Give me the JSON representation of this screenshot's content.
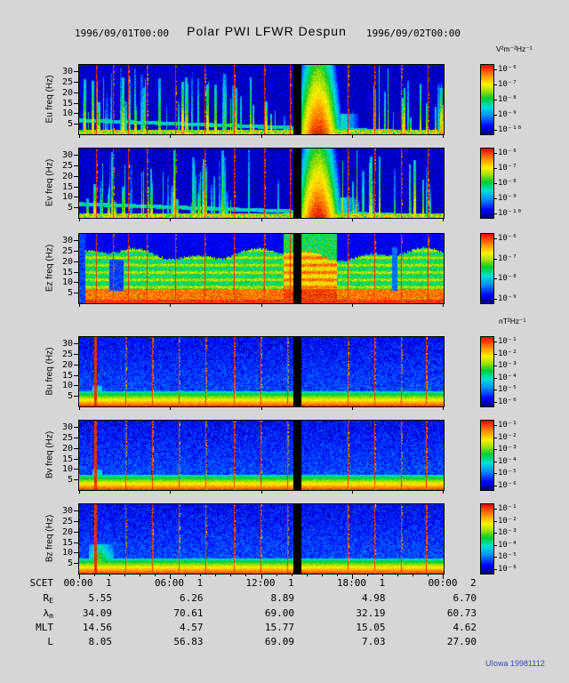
{
  "header": {
    "start_time": "1996/09/01T00:00",
    "title": "Polar PWI LFWR Despun",
    "end_time": "1996/09/02T00:00"
  },
  "credit": "UIowa 19981112",
  "colors": {
    "background": "#d6d6d6",
    "credit_text": "#4444bb"
  },
  "freq_ticks": [
    30,
    25,
    20,
    15,
    10,
    5
  ],
  "panels": [
    {
      "id": "Eu",
      "label": "Eu freq (Hz)",
      "type": "E",
      "colorbar": {
        "unit": "V²m⁻²Hz⁻¹",
        "ticks": [
          "10⁻⁶",
          "10⁻⁷",
          "10⁻⁸",
          "10⁻⁹",
          "10⁻¹⁰"
        ]
      }
    },
    {
      "id": "Ev",
      "label": "Ev freq (Hz)",
      "type": "E",
      "colorbar": {
        "ticks": [
          "10⁻⁶",
          "10⁻⁷",
          "10⁻⁸",
          "10⁻⁹",
          "10⁻¹⁰"
        ]
      }
    },
    {
      "id": "Ez",
      "label": "Ez freq (Hz)",
      "type": "Ez",
      "colorbar": {
        "ticks": [
          "10⁻⁶",
          "10⁻⁷",
          "10⁻⁸",
          "10⁻⁹"
        ]
      }
    },
    {
      "id": "Bu",
      "label": "Bu freq (Hz)",
      "type": "B",
      "colorbar": {
        "unit": "nT²Hz⁻¹",
        "ticks": [
          "10⁻¹",
          "10⁻²",
          "10⁻³",
          "10⁻⁴",
          "10⁻⁵",
          "10⁻⁶"
        ]
      }
    },
    {
      "id": "Bv",
      "label": "Bv freq (Hz)",
      "type": "B",
      "colorbar": {
        "ticks": [
          "10⁻¹",
          "10⁻²",
          "10⁻³",
          "10⁻⁴",
          "10⁻⁵",
          "10⁻⁶"
        ]
      }
    },
    {
      "id": "Bz",
      "label": "Bz freq (Hz)",
      "type": "Bz",
      "colorbar": {
        "ticks": [
          "10⁻¹",
          "10⁻²",
          "10⁻³",
          "10⁻⁴",
          "10⁻⁵",
          "10⁻⁶"
        ]
      }
    }
  ],
  "xaxis": {
    "rows": [
      {
        "label": "SCET",
        "sub": "",
        "values": [
          "00:00",
          "06:00",
          "12:00",
          "18:00",
          "00:00"
        ],
        "days": [
          "1",
          "1",
          "1",
          "1",
          "2"
        ]
      },
      {
        "label": "R",
        "sub": "E",
        "values": [
          "5.55",
          "6.26",
          "8.89",
          "4.98",
          "6.70"
        ]
      },
      {
        "label": "λ",
        "sub": "m",
        "values": [
          "34.09",
          "70.61",
          "69.00",
          "32.19",
          "60.73"
        ]
      },
      {
        "label": "MLT",
        "sub": "",
        "values": [
          "14.56",
          "4.57",
          "15.77",
          "15.05",
          "4.62"
        ]
      },
      {
        "label": "L",
        "sub": "",
        "values": [
          "8.05",
          "56.83",
          "69.09",
          "7.03",
          "27.90"
        ]
      }
    ]
  },
  "chart_data": {
    "type": "heatmap",
    "subtype": "multi-panel time-frequency spectrogram",
    "title": "Polar PWI LFWR Despun",
    "x": {
      "label": "SCET",
      "start": "1996/09/01T00:00",
      "end": "1996/09/02T00:00",
      "ticks": [
        "00:00",
        "06:00",
        "12:00",
        "18:00",
        "00:00"
      ],
      "tick_days": [
        "1",
        "1",
        "1",
        "1",
        "2"
      ]
    },
    "y": {
      "label": "freq (Hz)",
      "ticks": [
        5,
        10,
        15,
        20,
        25,
        30
      ],
      "range": [
        0,
        33
      ]
    },
    "legend_position": "right",
    "grid": false,
    "panels": [
      {
        "name": "Eu",
        "ylabel": "Eu freq (Hz)",
        "unit": "V²m⁻²Hz⁻¹",
        "scale_ticks": [
          "10⁻⁶",
          "10⁻⁷",
          "10⁻⁸",
          "10⁻⁹",
          "10⁻¹⁰"
        ]
      },
      {
        "name": "Ev",
        "ylabel": "Ev freq (Hz)",
        "unit": "V²m⁻²Hz⁻¹",
        "scale_ticks": [
          "10⁻⁶",
          "10⁻⁷",
          "10⁻⁸",
          "10⁻⁹",
          "10⁻¹⁰"
        ]
      },
      {
        "name": "Ez",
        "ylabel": "Ez freq (Hz)",
        "unit": "V²m⁻²Hz⁻¹",
        "scale_ticks": [
          "10⁻⁶",
          "10⁻⁷",
          "10⁻⁸",
          "10⁻⁹"
        ]
      },
      {
        "name": "Bu",
        "ylabel": "Bu freq (Hz)",
        "unit": "nT²Hz⁻¹",
        "scale_ticks": [
          "10⁻¹",
          "10⁻²",
          "10⁻³",
          "10⁻⁴",
          "10⁻⁵",
          "10⁻⁶"
        ]
      },
      {
        "name": "Bv",
        "ylabel": "Bv freq (Hz)",
        "unit": "nT²Hz⁻¹",
        "scale_ticks": [
          "10⁻¹",
          "10⁻²",
          "10⁻³",
          "10⁻⁴",
          "10⁻⁵",
          "10⁻⁶"
        ]
      },
      {
        "name": "Bz",
        "ylabel": "Bz freq (Hz)",
        "unit": "nT²Hz⁻¹",
        "scale_ticks": [
          "10⁻¹",
          "10⁻²",
          "10⁻³",
          "10⁻⁴",
          "10⁻⁵",
          "10⁻⁶"
        ]
      }
    ],
    "ephemeris_rows": [
      {
        "label": "RE",
        "values": [
          5.55,
          6.26,
          8.89,
          4.98,
          6.7
        ]
      },
      {
        "label": "λm",
        "values": [
          34.09,
          70.61,
          69.0,
          32.19,
          60.73
        ]
      },
      {
        "label": "MLT",
        "values": [
          14.56,
          4.57,
          15.77,
          15.05,
          4.62
        ]
      },
      {
        "label": "L",
        "values": [
          8.05,
          56.83,
          69.09,
          7.03,
          27.9
        ]
      }
    ]
  }
}
